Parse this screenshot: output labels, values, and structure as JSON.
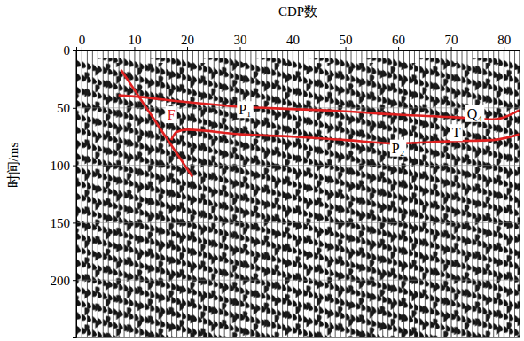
{
  "chart_data": {
    "type": "line",
    "x_label": "CDP数",
    "y_label": "时间/ms",
    "xlim": [
      -1,
      83
    ],
    "ylim": [
      0,
      250
    ],
    "xticks": [
      0,
      10,
      20,
      30,
      40,
      50,
      60,
      70,
      80
    ],
    "yticks": [
      0,
      50,
      100,
      150,
      200
    ],
    "grid": true,
    "series": [
      {
        "color": "#e02020",
        "line_style": "solid",
        "x": [
          7.5,
          21
        ],
        "values": [
          17,
          110
        ]
      },
      {
        "color": "#e02020",
        "line_style": "solid",
        "x": [
          7,
          10,
          20,
          30,
          40,
          50,
          60,
          70,
          78,
          83
        ],
        "values": [
          39,
          40,
          45,
          49,
          51,
          53,
          56,
          58,
          60,
          52
        ]
      },
      {
        "color": "#e02020",
        "line_style": "solid",
        "x": [
          17,
          18,
          20,
          30,
          40,
          50,
          60,
          70,
          78,
          83
        ],
        "values": [
          78,
          71,
          69,
          73,
          75,
          78,
          81,
          79,
          78,
          73
        ]
      }
    ],
    "annotations": [
      {
        "text": "F",
        "x": 17,
        "y": 56,
        "color": "#e02020"
      },
      {
        "text": "P₁",
        "x": 31,
        "y": 51.5,
        "color": "#000000"
      },
      {
        "text": "P₂",
        "x": 60,
        "y": 85,
        "color": "#000000"
      },
      {
        "text": "Q₄",
        "x": 74.5,
        "y": 55,
        "color": "#000000"
      },
      {
        "text": "T",
        "x": 71,
        "y": 71.5,
        "color": "#000000"
      }
    ]
  }
}
